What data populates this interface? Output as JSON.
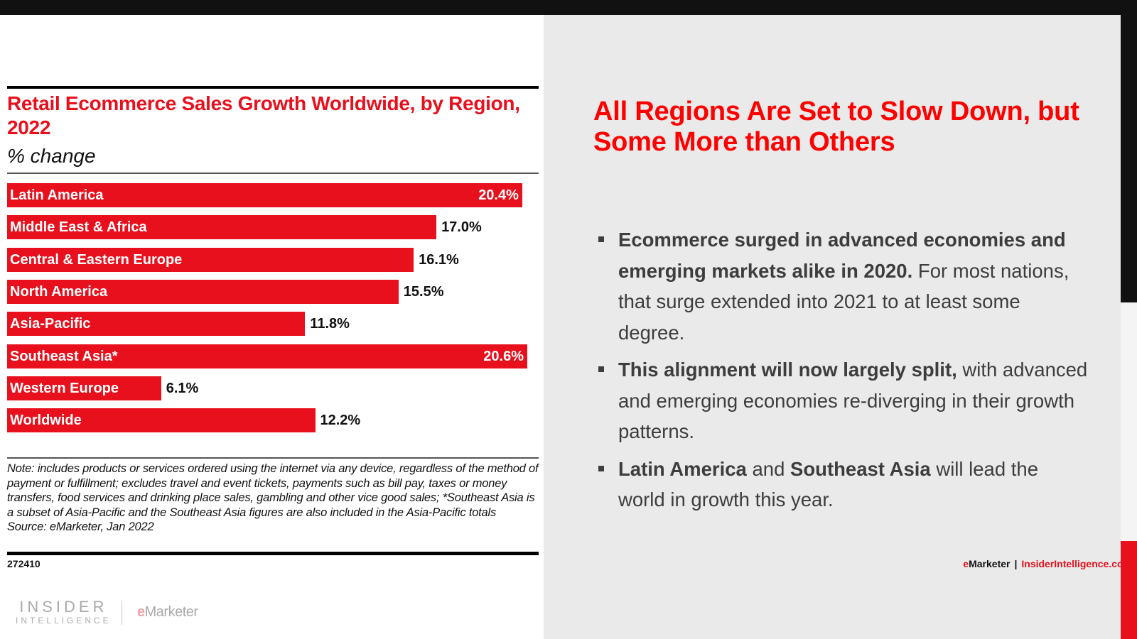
{
  "chart_data": {
    "type": "bar",
    "orientation": "horizontal",
    "title": "Retail Ecommerce Sales Growth Worldwide, by Region, 2022",
    "subtitle": "% change",
    "categories": [
      "Latin America",
      "Middle East & Africa",
      "Central & Eastern Europe",
      "North America",
      "Asia-Pacific",
      "Southeast Asia*",
      "Western Europe",
      "Worldwide"
    ],
    "values": [
      20.4,
      17.0,
      16.1,
      15.5,
      11.8,
      20.6,
      6.1,
      12.2
    ],
    "value_labels": [
      "20.4%",
      "17.0%",
      "16.1%",
      "15.5%",
      "11.8%",
      "20.6%",
      "6.1%",
      "12.2%"
    ],
    "xlim": [
      0,
      20.6
    ],
    "grid": false,
    "bar_color": "#e8101d",
    "note": "Note: includes products or services ordered using the internet via any device, regardless of the method of payment or fulfillment; excludes travel and event tickets, payments such as bill pay, taxes or money transfers, food services and drinking place sales, gambling and other vice good sales; *Southeast Asia is a subset of Asia-Pacific and the Southeast Asia figures are also included in the Asia-Pacific totals",
    "source": "Source: eMarketer, Jan 2022",
    "chart_id": "272410",
    "credit_brand_prefix": "e",
    "credit_brand_rest": "Marketer",
    "credit_separator": "|",
    "credit_site": "InsiderIntelligence.com"
  },
  "logos": {
    "insider_line1": "INSIDER",
    "insider_line2": "INTELLIGENCE",
    "emarketer_prefix": "e",
    "emarketer_rest": "Marketer"
  },
  "slide": {
    "title": "All Regions Are Set to Slow Down, but Some More than Others",
    "bullets": [
      {
        "bold": "Ecommerce surged in advanced economies and emerging markets alike in 2020.",
        "text": " For most nations, that surge extended into 2021 to at least some degree."
      },
      {
        "bold": "This alignment will now largely split,",
        "text": " with advanced and emerging economies re-diverging in their growth patterns."
      },
      {
        "bold": "Latin America",
        "text": " and ",
        "bold2": "Southeast Asia",
        "text2": " will lead the world in growth this year."
      }
    ]
  },
  "colors": {
    "accent_red": "#e8101d",
    "title_red": "#ff0000",
    "body_text": "#3d3d3d",
    "panel_gray": "#eaeaea"
  }
}
